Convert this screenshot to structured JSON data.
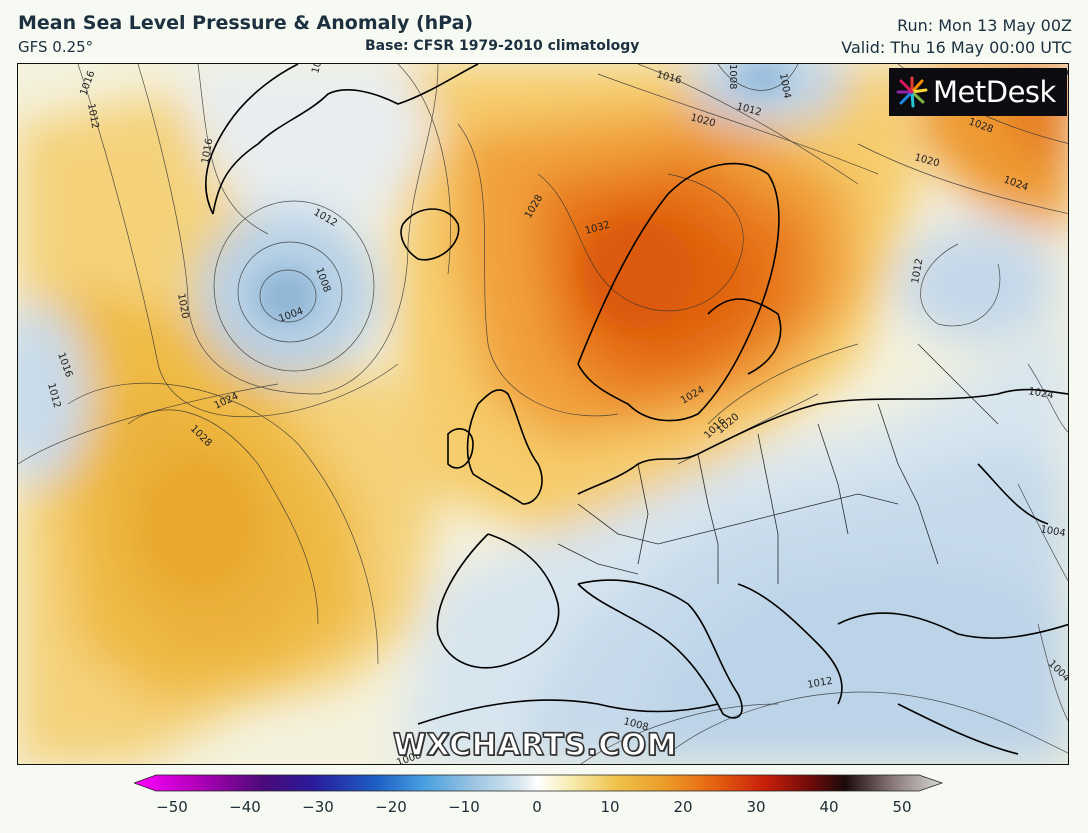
{
  "header": {
    "title": "Mean Sea Level Pressure & Anomaly (hPa)",
    "model": "GFS 0.25°",
    "base": "Base: CFSR 1979-2010 climatology",
    "run": "Run: Mon 13 May 00Z",
    "valid": "Valid: Thu 16 May 00:00 UTC"
  },
  "logo": {
    "text": "MetDesk",
    "icon": "metdesk-starburst-icon"
  },
  "watermark": "WXCHARTS.COM",
  "colorbar": {
    "min": -50,
    "max": 50,
    "ticks": [
      "−50",
      "−40",
      "−30",
      "−20",
      "−10",
      "0",
      "10",
      "20",
      "30",
      "40",
      "50"
    ]
  },
  "isobars": {
    "labels": [
      "1016",
      "1012",
      "1016",
      "1012",
      "1020",
      "1016",
      "1012",
      "1008",
      "1004",
      "1012",
      "1016",
      "1020",
      "1024",
      "1028",
      "1032",
      "1028",
      "1024",
      "1020",
      "1024",
      "1012",
      "1008",
      "1004",
      "1028",
      "1020",
      "1024",
      "1016",
      "1012",
      "1004",
      "1012",
      "1008",
      "1004",
      "1008",
      "1020"
    ]
  },
  "colors": {
    "high_anomaly": "#e8760e",
    "strong_high": "#e05a08",
    "low_anomaly": "#8fb7d6",
    "neutral": "#f7f7ea"
  }
}
